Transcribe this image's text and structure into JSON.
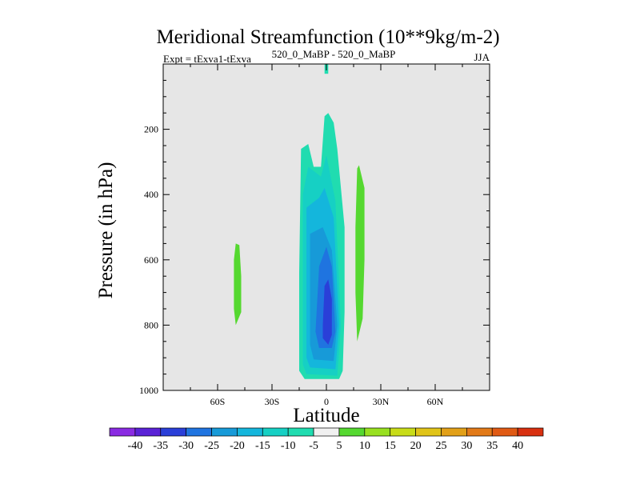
{
  "chart_data": {
    "type": "heatmap",
    "title": "Meridional Streamfunction (10**9kg/m-2)",
    "subtitle_left": "Expt = tExva1-tExva",
    "subtitle_center": "520_0_MaBP - 520_0_MaBP",
    "subtitle_right": "JJA",
    "xlabel": "Latitude",
    "ylabel": "Pressure (in hPa)",
    "xlim": [
      -90,
      90
    ],
    "ylim": [
      1000,
      0
    ],
    "x_ticks": [
      {
        "value": -60,
        "label": "60S"
      },
      {
        "value": -30,
        "label": "30S"
      },
      {
        "value": 0,
        "label": "0"
      },
      {
        "value": 30,
        "label": "30N"
      },
      {
        "value": 60,
        "label": "60N"
      }
    ],
    "y_ticks": [
      {
        "value": 200,
        "label": "200"
      },
      {
        "value": 400,
        "label": "400"
      },
      {
        "value": 600,
        "label": "600"
      },
      {
        "value": 800,
        "label": "800"
      },
      {
        "value": 1000,
        "label": "1000"
      }
    ],
    "background_color": "#e6e6e6",
    "colorbar": {
      "levels": [
        "-40",
        "-35",
        "-30",
        "-25",
        "-20",
        "-15",
        "-10",
        "-5",
        "5",
        "10",
        "15",
        "20",
        "25",
        "30",
        "35",
        "40"
      ],
      "colors": [
        "#8a2be2",
        "#5a22d6",
        "#2a3fd8",
        "#1f74e0",
        "#179ad8",
        "#14b6dc",
        "#16d0c4",
        "#20dcb0",
        "#f0f0f0",
        "#55d830",
        "#98e020",
        "#c8dc18",
        "#e0c418",
        "#e2a018",
        "#e27a18",
        "#e05a14",
        "#d83010"
      ]
    },
    "regions": [
      {
        "level": "-10 to -5",
        "color": "#20dcb0",
        "points": [
          [
            -1,
            0
          ],
          [
            1,
            0
          ],
          [
            1,
            30
          ],
          [
            -1,
            30
          ]
        ]
      },
      {
        "level": "-10 to -5",
        "color": "#20dcb0",
        "points": [
          [
            -15,
            940
          ],
          [
            -15,
            640
          ],
          [
            -14,
            260
          ],
          [
            -10,
            245
          ],
          [
            -7,
            315
          ],
          [
            -3,
            315
          ],
          [
            -1,
            160
          ],
          [
            1,
            150
          ],
          [
            4,
            180
          ],
          [
            6,
            260
          ],
          [
            10,
            500
          ],
          [
            10,
            760
          ],
          [
            9,
            940
          ],
          [
            7,
            965
          ],
          [
            -12,
            965
          ]
        ]
      },
      {
        "level": "-15 to -10",
        "color": "#16d0c4",
        "points": [
          [
            -13,
            920
          ],
          [
            -13,
            400
          ],
          [
            -10,
            315
          ],
          [
            -3,
            345
          ],
          [
            0,
            280
          ],
          [
            5,
            420
          ],
          [
            8,
            800
          ],
          [
            6,
            955
          ],
          [
            -11,
            950
          ]
        ]
      },
      {
        "level": "-20 to -15",
        "color": "#14b6dc",
        "points": [
          [
            -11,
            900
          ],
          [
            -11,
            440
          ],
          [
            -4,
            410
          ],
          [
            -1,
            380
          ],
          [
            4,
            470
          ],
          [
            7,
            800
          ],
          [
            5,
            935
          ],
          [
            -9,
            930
          ]
        ]
      },
      {
        "level": "-25 to -20",
        "color": "#179ad8",
        "points": [
          [
            -9,
            860
          ],
          [
            -9,
            520
          ],
          [
            -2,
            500
          ],
          [
            3,
            570
          ],
          [
            6,
            800
          ],
          [
            4,
            910
          ],
          [
            -7,
            905
          ]
        ]
      },
      {
        "level": "-30 to -25",
        "color": "#1f74e0",
        "points": [
          [
            -6,
            820
          ],
          [
            -4,
            620
          ],
          [
            0,
            560
          ],
          [
            3,
            620
          ],
          [
            5,
            820
          ],
          [
            3,
            870
          ],
          [
            -4,
            870
          ]
        ]
      },
      {
        "level": "-35 to -30",
        "color": "#2a3fd8",
        "points": [
          [
            -2,
            800
          ],
          [
            -1,
            680
          ],
          [
            1,
            660
          ],
          [
            3,
            720
          ],
          [
            3,
            830
          ],
          [
            1,
            860
          ],
          [
            -2,
            840
          ]
        ]
      },
      {
        "level": "5 to 10",
        "color": "#55d830",
        "points": [
          [
            -50,
            800
          ],
          [
            -51,
            750
          ],
          [
            -51,
            600
          ],
          [
            -50,
            550
          ],
          [
            -48,
            555
          ],
          [
            -47,
            650
          ],
          [
            -47,
            760
          ]
        ]
      },
      {
        "level": "5 to 10",
        "color": "#55d830",
        "points": [
          [
            17,
            850
          ],
          [
            16,
            700
          ],
          [
            16,
            500
          ],
          [
            17,
            320
          ],
          [
            18,
            310
          ],
          [
            21,
            380
          ],
          [
            21,
            600
          ],
          [
            20,
            780
          ]
        ]
      }
    ]
  }
}
